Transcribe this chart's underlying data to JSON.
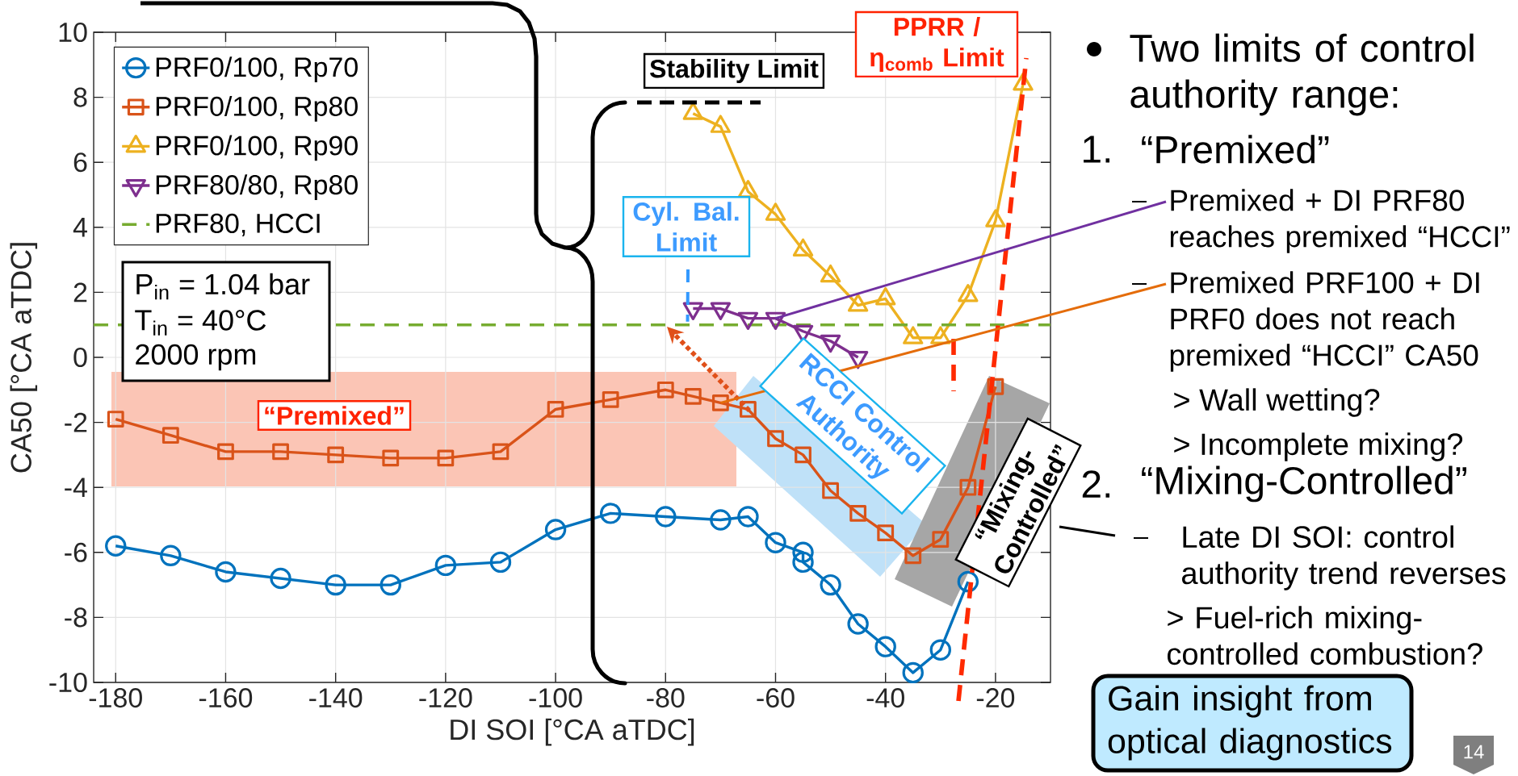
{
  "chart_data": {
    "type": "line",
    "xlabel": "DI SOI [°CA aTDC]",
    "ylabel": "CA50 [°CA aTDC]",
    "xlim": [
      -184,
      -10
    ],
    "ylim": [
      -10,
      10
    ],
    "xticks": [
      -180,
      -160,
      -140,
      -120,
      -100,
      -80,
      -60,
      -40,
      -20
    ],
    "yticks": [
      -10,
      -8,
      -6,
      -4,
      -2,
      0,
      2,
      4,
      6,
      8,
      10
    ],
    "grid": true,
    "legend": "top left",
    "series": [
      {
        "name": "PRF0/100, Rp70",
        "color": "#0072bd",
        "marker": "circle",
        "line_style": "solid",
        "x": [
          -180,
          -170,
          -160,
          -150,
          -140,
          -130,
          -120,
          -110,
          -100,
          -90,
          -80,
          -70,
          -65,
          -60,
          -55,
          -55,
          -50,
          -45,
          -40,
          -35,
          -30,
          -25
        ],
        "values": [
          -5.8,
          -6.1,
          -6.6,
          -6.8,
          -7.0,
          -7.0,
          -6.4,
          -6.3,
          -5.3,
          -4.8,
          -4.9,
          -5.0,
          -4.9,
          -5.7,
          -6.0,
          -6.3,
          -7.0,
          -8.2,
          -8.9,
          -9.7,
          -9.0,
          -6.9
        ]
      },
      {
        "name": "PRF0/100, Rp80",
        "color": "#d95319",
        "marker": "square",
        "line_style": "solid",
        "x": [
          -180,
          -170,
          -160,
          -150,
          -140,
          -130,
          -120,
          -110,
          -100,
          -90,
          -80,
          -75,
          -70,
          -65,
          -60,
          -55,
          -50,
          -45,
          -40,
          -35,
          -30,
          -25,
          -20
        ],
        "values": [
          -1.9,
          -2.4,
          -2.9,
          -2.9,
          -3.0,
          -3.1,
          -3.1,
          -2.9,
          -1.6,
          -1.3,
          -1.0,
          -1.2,
          -1.4,
          -1.6,
          -2.5,
          -3.0,
          -4.1,
          -4.8,
          -5.4,
          -6.1,
          -5.6,
          -4.0,
          -0.9
        ]
      },
      {
        "name": "PRF0/100, Rp90",
        "color": "#edb120",
        "marker": "triangle",
        "line_style": "solid",
        "x": [
          -75,
          -70,
          -65,
          -60,
          -55,
          -50,
          -45,
          -40,
          -35,
          -30,
          -25,
          -20,
          -15
        ],
        "values": [
          7.5,
          7.1,
          5.1,
          4.4,
          3.3,
          2.5,
          1.6,
          1.8,
          0.6,
          0.6,
          1.9,
          4.2,
          8.4
        ]
      },
      {
        "name": "PRF80/80, Rp80",
        "color": "#7e2f8e",
        "marker": "triangle-down",
        "line_style": "solid",
        "x": [
          -75,
          -70,
          -65,
          -60,
          -55,
          -50,
          -45
        ],
        "values": [
          1.5,
          1.5,
          1.2,
          1.2,
          0.8,
          0.5,
          0.0
        ]
      },
      {
        "name": "PRF80, HCCI",
        "color": "#77ac30",
        "marker": "none",
        "line_style": "dashed",
        "x": [
          -184,
          -10
        ],
        "values": [
          1,
          1
        ]
      }
    ],
    "annotations": [
      "Stability Limit",
      "PPRR / η$_{comb}$ Limit",
      {
        "text": "Cyl. Bal. Limit",
        "x": -76,
        "y": 1.1
      },
      "RCCI Control Authority",
      "“Premixed”",
      "“Mixing-Controlled”",
      "P$_{in}$ = 1.04 bar",
      "T$_{in}$ = 40°C",
      "2000 rpm",
      "Two limits of control authority range:",
      "1.",
      "“Premixed”",
      {
        "text": "Premixed + DI PRF80 reaches premixed “HCCI”",
        "x": -60,
        "y": 1.2
      },
      {
        "text": "Premixed PRF100 + DI PRF0 does not reach premixed “HCCI” CA50",
        "x": -70,
        "y": -1.4
      },
      "> Wall wetting?",
      "> Incomplete mixing?",
      "2.",
      "“Mixing-Controlled”",
      "Late DI SOI: control authority trend reverses",
      "> Fuel-rich mixing-controlled combustion?",
      "Gain insight from optical diagnostics",
      "14"
    ]
  }
}
